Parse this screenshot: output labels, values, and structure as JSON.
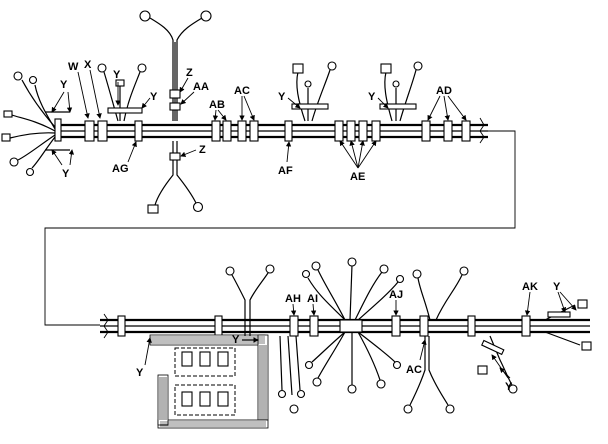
{
  "labels": {
    "Y_left_top": "Y",
    "W": "W",
    "X": "X",
    "Y_top2": "Y",
    "Y_mid": "Y",
    "Y_left_bottom": "Y",
    "AG": "AG",
    "Z_top": "Z",
    "AA": "AA",
    "Z_bottom": "Z",
    "AB": "AB",
    "AC_top": "AC",
    "AF": "AF",
    "Y_right1": "Y",
    "Y_right2": "Y",
    "AD": "AD",
    "AE": "AE",
    "AH": "AH",
    "AI": "AI",
    "AJ": "AJ",
    "AK": "AK",
    "Y_lower_right": "Y",
    "Y_lower_left": "Y",
    "Y_lower_mid": "Y",
    "AC_bottom": "AC",
    "Y_lower_br": "Y"
  }
}
